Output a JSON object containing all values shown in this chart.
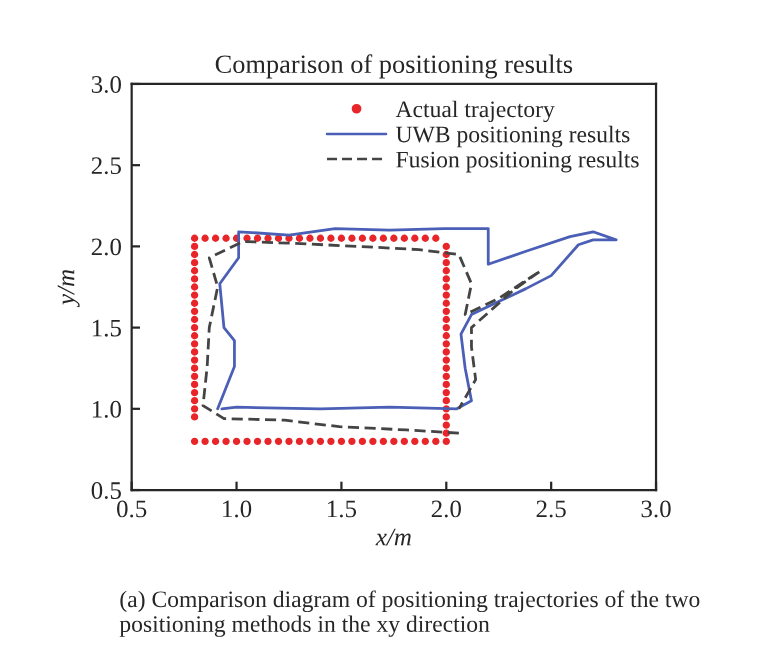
{
  "chart_data": {
    "type": "scatter",
    "title": "Comparison of positioning results",
    "xlabel": "x/m",
    "ylabel": "y/m",
    "xlim": [
      0.5,
      3.0
    ],
    "ylim": [
      0.5,
      3.0
    ],
    "xticks": [
      {
        "value": 0.5,
        "label": "0.5"
      },
      {
        "value": 1.0,
        "label": "1.0"
      },
      {
        "value": 1.5,
        "label": "1.5"
      },
      {
        "value": 2.0,
        "label": "2.0"
      },
      {
        "value": 2.5,
        "label": "2.5"
      },
      {
        "value": 3.0,
        "label": "3.0"
      }
    ],
    "yticks": [
      {
        "value": 0.5,
        "label": "0.5"
      },
      {
        "value": 1.0,
        "label": "1.0"
      },
      {
        "value": 1.5,
        "label": "1.5"
      },
      {
        "value": 2.0,
        "label": "2.0"
      },
      {
        "value": 2.5,
        "label": "2.5"
      },
      {
        "value": 3.0,
        "label": "3.0"
      }
    ],
    "grid": false,
    "legend": "top right",
    "annotations": [
      "(a) Comparison diagram of positioning trajectories of the two positioning methods in the xy direction"
    ],
    "series": [
      {
        "name": "Actual trajectory",
        "marker": "circle",
        "color": "#e8262a",
        "x": [
          0.8,
          0.85,
          0.9,
          0.95,
          1.0,
          1.05,
          1.1,
          1.15,
          1.2,
          1.25,
          1.3,
          1.35,
          1.4,
          1.45,
          1.5,
          1.55,
          1.6,
          1.65,
          1.7,
          1.75,
          1.8,
          1.85,
          1.9,
          1.95,
          2.0,
          2.0,
          2.0,
          2.0,
          2.0,
          2.0,
          2.0,
          2.0,
          2.0,
          2.0,
          2.0,
          2.0,
          2.0,
          2.0,
          2.0,
          2.0,
          2.0,
          2.0,
          2.0,
          2.0,
          2.0,
          2.0,
          2.0,
          2.0,
          2.0,
          1.95,
          1.9,
          1.85,
          1.8,
          1.75,
          1.7,
          1.65,
          1.6,
          1.55,
          1.5,
          1.45,
          1.4,
          1.35,
          1.3,
          1.25,
          1.2,
          1.15,
          1.1,
          1.05,
          1.0,
          0.95,
          0.9,
          0.85,
          0.8,
          0.8,
          0.8,
          0.8,
          0.8,
          0.8,
          0.8,
          0.8,
          0.8,
          0.8,
          0.8,
          0.8,
          0.8,
          0.8,
          0.8,
          0.8,
          0.8,
          0.8,
          0.8,
          0.8,
          0.8,
          0.8,
          0.8
        ],
        "values": [
          0.8,
          0.8,
          0.8,
          0.8,
          0.8,
          0.8,
          0.8,
          0.8,
          0.8,
          0.8,
          0.8,
          0.8,
          0.8,
          0.8,
          0.8,
          0.8,
          0.8,
          0.8,
          0.8,
          0.8,
          0.8,
          0.8,
          0.8,
          0.8,
          0.8,
          0.85,
          0.9,
          0.95,
          1.0,
          1.05,
          1.1,
          1.15,
          1.2,
          1.25,
          1.3,
          1.35,
          1.4,
          1.45,
          1.5,
          1.55,
          1.6,
          1.65,
          1.7,
          1.75,
          1.8,
          1.85,
          1.9,
          1.95,
          2.0,
          2.05,
          2.05,
          2.05,
          2.05,
          2.05,
          2.05,
          2.05,
          2.05,
          2.05,
          2.05,
          2.05,
          2.05,
          2.05,
          2.05,
          2.05,
          2.05,
          2.05,
          2.05,
          2.05,
          2.05,
          2.05,
          2.05,
          2.05,
          2.05,
          2.0,
          1.95,
          1.9,
          1.85,
          1.8,
          1.75,
          1.7,
          1.65,
          1.6,
          1.55,
          1.5,
          1.45,
          1.4,
          1.35,
          1.3,
          1.25,
          1.2,
          1.15,
          1.1,
          1.05,
          1.0,
          0.95
        ]
      },
      {
        "name": "UWB positioning results",
        "type": "line",
        "line_style": "solid",
        "marker": "none",
        "color": "#4a5fb5",
        "x": [
          0.91,
          0.99,
          0.99,
          0.94,
          0.92,
          1.01,
          1.01,
          1.25,
          1.47,
          1.73,
          1.99,
          2.2,
          2.2,
          2.38,
          2.59,
          2.7,
          2.81,
          2.7,
          2.63,
          2.5,
          2.38,
          2.25,
          2.12,
          2.07,
          2.09,
          2.12,
          2.05,
          1.73,
          1.4,
          1.0,
          0.93
        ],
        "values": [
          1.0,
          1.26,
          1.42,
          1.5,
          1.77,
          1.93,
          2.09,
          2.07,
          2.11,
          2.1,
          2.11,
          2.11,
          1.89,
          1.97,
          2.06,
          2.09,
          2.04,
          2.04,
          2.01,
          1.82,
          1.74,
          1.66,
          1.58,
          1.46,
          1.25,
          1.05,
          1.0,
          1.01,
          1.0,
          1.01,
          1.0
        ]
      },
      {
        "name": "Fusion positioning results",
        "type": "line",
        "line_style": "dashed",
        "marker": "none",
        "color": "#444444",
        "x": [
          2.06,
          1.81,
          1.49,
          1.23,
          0.94,
          0.84,
          0.86,
          0.87,
          0.91,
          0.87,
          1.03,
          1.25,
          1.58,
          1.87,
          2.06,
          2.12,
          2.09,
          2.25,
          2.45,
          2.32,
          2.12,
          2.12,
          2.14,
          2.06
        ],
        "values": [
          0.85,
          0.87,
          0.89,
          0.93,
          0.94,
          1.02,
          1.26,
          1.5,
          1.75,
          1.93,
          2.03,
          2.02,
          2.0,
          1.98,
          1.95,
          1.77,
          1.58,
          1.68,
          1.85,
          1.73,
          1.5,
          1.38,
          1.18,
          1.0
        ]
      }
    ]
  }
}
